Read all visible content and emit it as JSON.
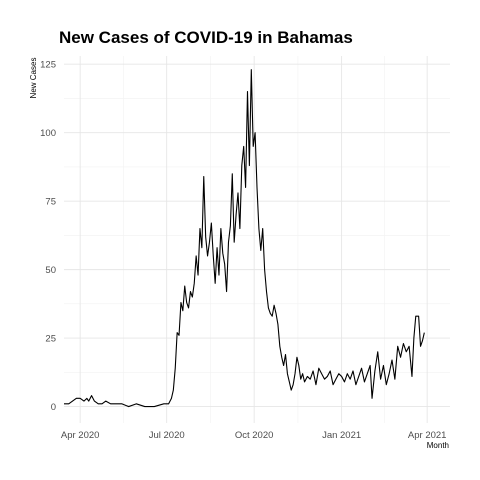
{
  "chart_data": {
    "type": "line",
    "title": "New Cases of COVID-19 in Bahamas",
    "xlabel": "Month",
    "ylabel": "New Cases",
    "x_ticks": [
      "Apr 2020",
      "Jul 2020",
      "Oct 2020",
      "Jan 2021",
      "Apr 2021"
    ],
    "y_ticks": [
      0,
      25,
      50,
      75,
      100,
      125
    ],
    "xlim": [
      "2020-03-15",
      "2021-04-25"
    ],
    "ylim": [
      -6,
      128
    ],
    "grid": true,
    "series": [
      {
        "points": [
          [
            "2020-03-15",
            1
          ],
          [
            "2020-03-20",
            1
          ],
          [
            "2020-03-24",
            2
          ],
          [
            "2020-03-28",
            3
          ],
          [
            "2020-04-01",
            3
          ],
          [
            "2020-04-05",
            2
          ],
          [
            "2020-04-08",
            3
          ],
          [
            "2020-04-10",
            2
          ],
          [
            "2020-04-13",
            4
          ],
          [
            "2020-04-16",
            2
          ],
          [
            "2020-04-20",
            1
          ],
          [
            "2020-04-24",
            1
          ],
          [
            "2020-04-28",
            2
          ],
          [
            "2020-05-03",
            1
          ],
          [
            "2020-05-08",
            1
          ],
          [
            "2020-05-15",
            1
          ],
          [
            "2020-05-22",
            0
          ],
          [
            "2020-05-30",
            1
          ],
          [
            "2020-06-08",
            0
          ],
          [
            "2020-06-18",
            0
          ],
          [
            "2020-06-28",
            1
          ],
          [
            "2020-07-03",
            1
          ],
          [
            "2020-07-06",
            3
          ],
          [
            "2020-07-08",
            6
          ],
          [
            "2020-07-10",
            14
          ],
          [
            "2020-07-12",
            27
          ],
          [
            "2020-07-14",
            26
          ],
          [
            "2020-07-16",
            38
          ],
          [
            "2020-07-18",
            35
          ],
          [
            "2020-07-20",
            44
          ],
          [
            "2020-07-22",
            38
          ],
          [
            "2020-07-24",
            36
          ],
          [
            "2020-07-26",
            42
          ],
          [
            "2020-07-28",
            40
          ],
          [
            "2020-07-30",
            45
          ],
          [
            "2020-08-01",
            55
          ],
          [
            "2020-08-03",
            48
          ],
          [
            "2020-08-05",
            65
          ],
          [
            "2020-08-07",
            58
          ],
          [
            "2020-08-09",
            84
          ],
          [
            "2020-08-11",
            62
          ],
          [
            "2020-08-13",
            55
          ],
          [
            "2020-08-15",
            60
          ],
          [
            "2020-08-17",
            67
          ],
          [
            "2020-08-19",
            55
          ],
          [
            "2020-08-21",
            45
          ],
          [
            "2020-08-23",
            58
          ],
          [
            "2020-08-25",
            48
          ],
          [
            "2020-08-27",
            65
          ],
          [
            "2020-08-29",
            56
          ],
          [
            "2020-08-31",
            52
          ],
          [
            "2020-09-02",
            42
          ],
          [
            "2020-09-04",
            60
          ],
          [
            "2020-09-06",
            66
          ],
          [
            "2020-09-08",
            85
          ],
          [
            "2020-09-10",
            60
          ],
          [
            "2020-09-12",
            70
          ],
          [
            "2020-09-14",
            78
          ],
          [
            "2020-09-16",
            65
          ],
          [
            "2020-09-18",
            88
          ],
          [
            "2020-09-20",
            95
          ],
          [
            "2020-09-22",
            80
          ],
          [
            "2020-09-24",
            115
          ],
          [
            "2020-09-26",
            88
          ],
          [
            "2020-09-28",
            123
          ],
          [
            "2020-09-30",
            95
          ],
          [
            "2020-10-02",
            100
          ],
          [
            "2020-10-04",
            80
          ],
          [
            "2020-10-06",
            65
          ],
          [
            "2020-10-08",
            57
          ],
          [
            "2020-10-10",
            65
          ],
          [
            "2020-10-12",
            50
          ],
          [
            "2020-10-14",
            42
          ],
          [
            "2020-10-16",
            36
          ],
          [
            "2020-10-18",
            34
          ],
          [
            "2020-10-20",
            33
          ],
          [
            "2020-10-22",
            37
          ],
          [
            "2020-10-24",
            34
          ],
          [
            "2020-10-26",
            30
          ],
          [
            "2020-10-28",
            22
          ],
          [
            "2020-10-30",
            18
          ],
          [
            "2020-11-01",
            15
          ],
          [
            "2020-11-03",
            19
          ],
          [
            "2020-11-05",
            12
          ],
          [
            "2020-11-07",
            9
          ],
          [
            "2020-11-09",
            6
          ],
          [
            "2020-11-11",
            8
          ],
          [
            "2020-11-13",
            12
          ],
          [
            "2020-11-15",
            18
          ],
          [
            "2020-11-17",
            15
          ],
          [
            "2020-11-19",
            10
          ],
          [
            "2020-11-21",
            12
          ],
          [
            "2020-11-23",
            9
          ],
          [
            "2020-11-26",
            11
          ],
          [
            "2020-11-29",
            10
          ],
          [
            "2020-12-02",
            13
          ],
          [
            "2020-12-05",
            8
          ],
          [
            "2020-12-08",
            14
          ],
          [
            "2020-12-11",
            12
          ],
          [
            "2020-12-14",
            10
          ],
          [
            "2020-12-17",
            11
          ],
          [
            "2020-12-20",
            13
          ],
          [
            "2020-12-23",
            8
          ],
          [
            "2020-12-26",
            10
          ],
          [
            "2020-12-29",
            12
          ],
          [
            "2021-01-01",
            11
          ],
          [
            "2021-01-04",
            9
          ],
          [
            "2021-01-07",
            12
          ],
          [
            "2021-01-10",
            10
          ],
          [
            "2021-01-13",
            13
          ],
          [
            "2021-01-16",
            8
          ],
          [
            "2021-01-19",
            11
          ],
          [
            "2021-01-22",
            14
          ],
          [
            "2021-01-25",
            9
          ],
          [
            "2021-01-28",
            12
          ],
          [
            "2021-01-31",
            15
          ],
          [
            "2021-02-02",
            3
          ],
          [
            "2021-02-05",
            13
          ],
          [
            "2021-02-08",
            20
          ],
          [
            "2021-02-11",
            10
          ],
          [
            "2021-02-14",
            15
          ],
          [
            "2021-02-17",
            8
          ],
          [
            "2021-02-20",
            12
          ],
          [
            "2021-02-23",
            17
          ],
          [
            "2021-02-26",
            10
          ],
          [
            "2021-03-01",
            22
          ],
          [
            "2021-03-04",
            18
          ],
          [
            "2021-03-07",
            23
          ],
          [
            "2021-03-10",
            20
          ],
          [
            "2021-03-13",
            22
          ],
          [
            "2021-03-16",
            11
          ],
          [
            "2021-03-18",
            25
          ],
          [
            "2021-03-20",
            33
          ],
          [
            "2021-03-23",
            33
          ],
          [
            "2021-03-25",
            22
          ],
          [
            "2021-03-27",
            24
          ],
          [
            "2021-03-29",
            27
          ]
        ]
      }
    ]
  }
}
